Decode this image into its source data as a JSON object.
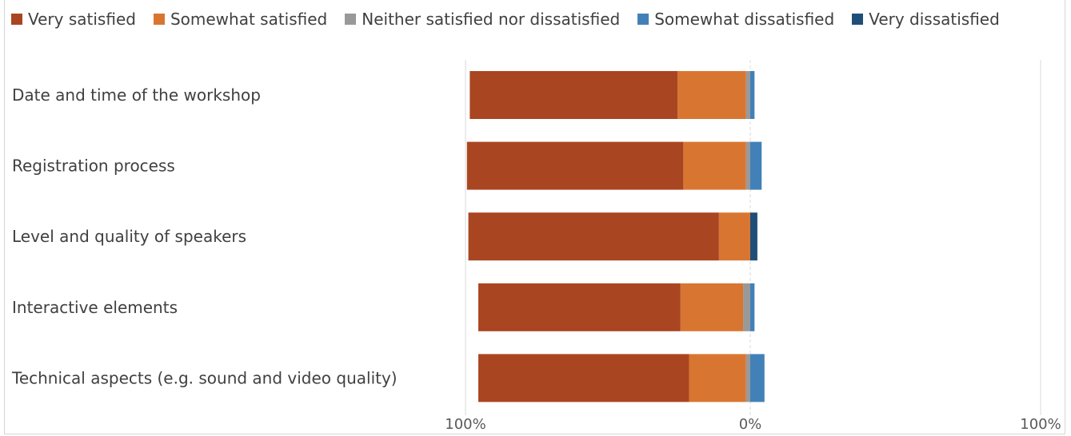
{
  "chart_data": {
    "type": "bar",
    "orientation": "horizontal",
    "stacked": "diverging",
    "categories": [
      "Date and time of the workshop",
      "Registration process",
      "Level and quality of speakers",
      "Interactive elements",
      "Technical aspects (e.g. sound and video quality)"
    ],
    "series": [
      {
        "name": "Very satisfied",
        "side": "positive",
        "color": "#AA4521",
        "values": [
          73,
          76,
          88,
          71,
          74
        ]
      },
      {
        "name": "Somewhat satisfied",
        "side": "positive",
        "color": "#D87631",
        "values": [
          24,
          22,
          11,
          22,
          20
        ]
      },
      {
        "name": "Neither satisfied nor dissatisfied",
        "side": "positive",
        "color": "#999999",
        "values": [
          1.5,
          1.5,
          0,
          2.5,
          1.5
        ]
      },
      {
        "name": "Somewhat dissatisfied",
        "side": "negative",
        "color": "#4281B8",
        "values": [
          1.5,
          4,
          0,
          1.5,
          5
        ]
      },
      {
        "name": "Very dissatisfied",
        "side": "negative",
        "color": "#1F4E79",
        "values": [
          0,
          0,
          2.5,
          0,
          0
        ]
      }
    ],
    "xlim": [
      -100,
      100
    ],
    "tick_labels": [
      "100%",
      "0%",
      "100%"
    ],
    "grid": true,
    "legend_position": "top"
  }
}
